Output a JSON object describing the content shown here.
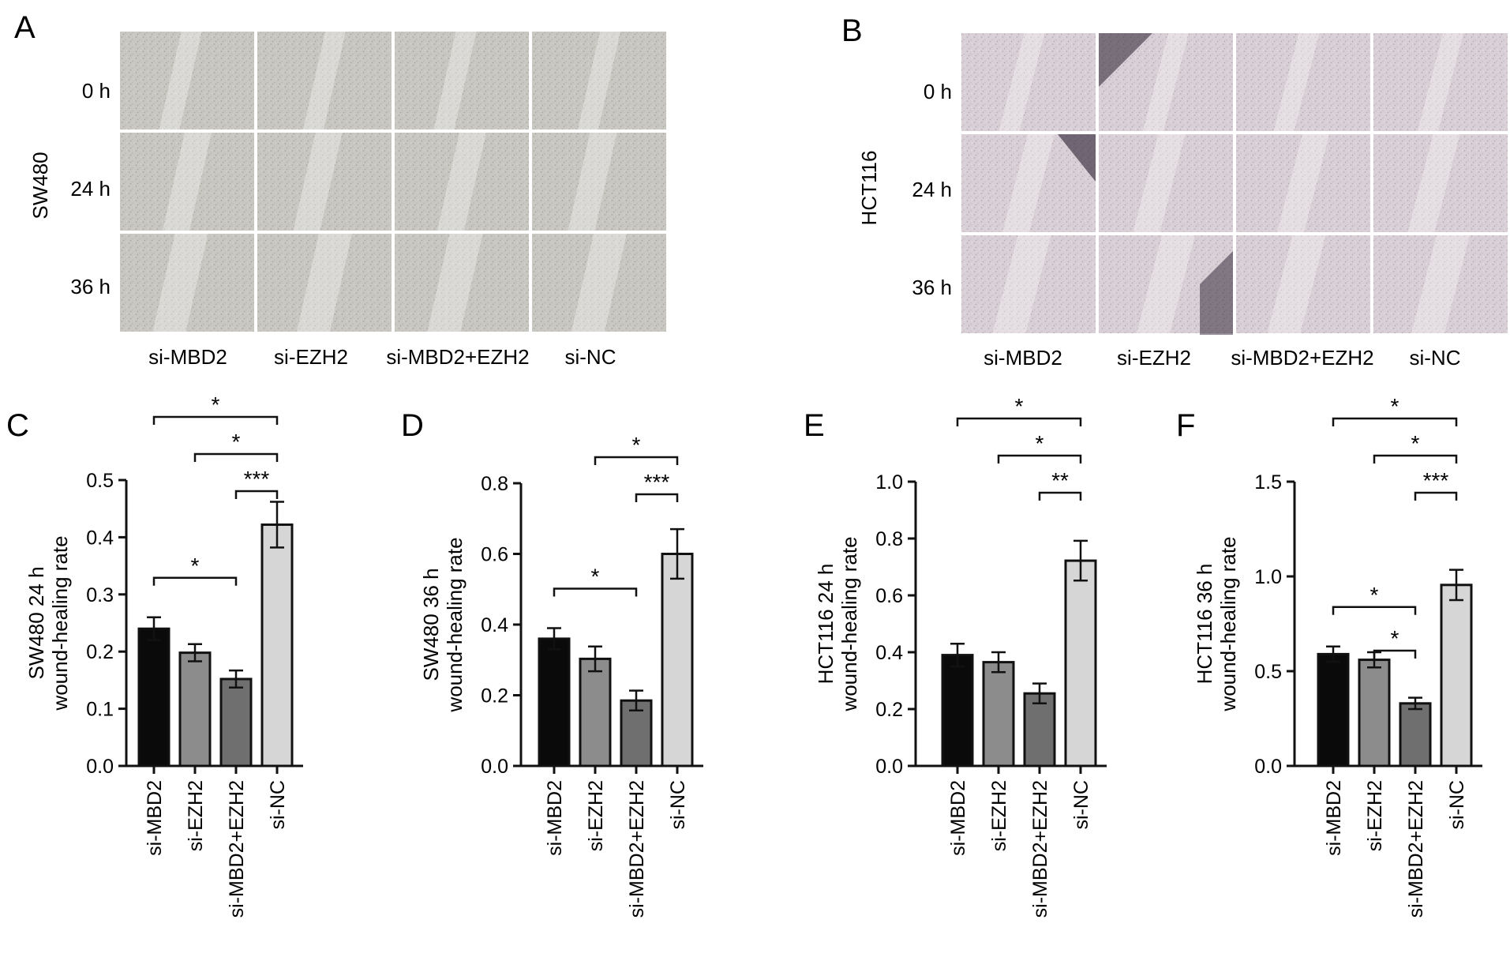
{
  "panels": {
    "A": {
      "letter": "A",
      "cell_line": "SW480",
      "rows": [
        "0 h",
        "24 h",
        "36 h"
      ],
      "columns": [
        "si-MBD2",
        "si-EZH2",
        "si-MBD2+EZH2",
        "si-NC"
      ],
      "tint": "#c9c7c1"
    },
    "B": {
      "letter": "B",
      "cell_line": "HCT116",
      "rows": [
        "0 h",
        "24 h",
        "36 h"
      ],
      "columns": [
        "si-MBD2",
        "si-EZH2",
        "si-MBD2+EZH2",
        "si-NC"
      ],
      "tint": "#d9cfd6"
    }
  },
  "bar_colors": [
    "#0a0a0a",
    "#8c8c8c",
    "#6f6f6f",
    "#d6d6d6"
  ],
  "chart_data": [
    {
      "letter": "C",
      "type": "bar",
      "ylabel": [
        "SW480 24 h",
        "wound-healing rate"
      ],
      "categories": [
        "si-MBD2",
        "si-EZH2",
        "si-MBD2+EZH2",
        "si-NC"
      ],
      "values": [
        0.24,
        0.198,
        0.152,
        0.422
      ],
      "errors": [
        0.02,
        0.015,
        0.015,
        0.04
      ],
      "ylim": [
        0,
        0.5
      ],
      "yticks": [
        "0.0",
        "0.1",
        "0.2",
        "0.3",
        "0.4",
        "0.5"
      ],
      "brackets_top": [
        {
          "from": 0,
          "to": 3,
          "label": "*"
        },
        {
          "from": 1,
          "to": 3,
          "label": "*"
        },
        {
          "from": 2,
          "to": 3,
          "label": "***"
        }
      ],
      "brackets_low": [
        {
          "from": 0,
          "to": 2,
          "label": "*"
        }
      ]
    },
    {
      "letter": "D",
      "type": "bar",
      "ylabel": [
        "SW480 36 h",
        "wound-healing rate"
      ],
      "categories": [
        "si-MBD2",
        "si-EZH2",
        "si-MBD2+EZH2",
        "si-NC"
      ],
      "values": [
        0.36,
        0.303,
        0.185,
        0.6
      ],
      "errors": [
        0.03,
        0.035,
        0.028,
        0.07
      ],
      "ylim": [
        0,
        0.8
      ],
      "yticks": [
        "0.0",
        "0.2",
        "0.4",
        "0.6",
        "0.8"
      ],
      "brackets_top": [
        {
          "from": 1,
          "to": 3,
          "label": "*"
        },
        {
          "from": 2,
          "to": 3,
          "label": "***"
        }
      ],
      "brackets_low": [
        {
          "from": 0,
          "to": 2,
          "label": "*"
        }
      ]
    },
    {
      "letter": "E",
      "type": "bar",
      "ylabel": [
        "HCT116 24 h",
        "wound-healing rate"
      ],
      "categories": [
        "si-MBD2",
        "si-EZH2",
        "si-MBD2+EZH2",
        "si-NC"
      ],
      "values": [
        0.39,
        0.365,
        0.255,
        0.722
      ],
      "errors": [
        0.04,
        0.035,
        0.035,
        0.07
      ],
      "ylim": [
        0,
        1.0
      ],
      "yticks": [
        "0.0",
        "0.2",
        "0.4",
        "0.6",
        "0.8",
        "1.0"
      ],
      "brackets_top": [
        {
          "from": 0,
          "to": 3,
          "label": "*"
        },
        {
          "from": 1,
          "to": 3,
          "label": "*"
        },
        {
          "from": 2,
          "to": 3,
          "label": "**"
        }
      ],
      "brackets_low": []
    },
    {
      "letter": "F",
      "type": "bar",
      "ylabel": [
        "HCT116 36 h",
        "wound-healing rate"
      ],
      "categories": [
        "si-MBD2",
        "si-EZH2",
        "si-MBD2+EZH2",
        "si-NC"
      ],
      "values": [
        0.59,
        0.56,
        0.33,
        0.955
      ],
      "errors": [
        0.04,
        0.04,
        0.03,
        0.08
      ],
      "ylim": [
        0,
        1.5
      ],
      "yticks": [
        "0.0",
        "0.5",
        "1.0",
        "1.5"
      ],
      "brackets_top": [
        {
          "from": 0,
          "to": 3,
          "label": "*"
        },
        {
          "from": 1,
          "to": 3,
          "label": "*"
        },
        {
          "from": 2,
          "to": 3,
          "label": "***"
        }
      ],
      "brackets_low": [
        {
          "from": 0,
          "to": 2,
          "label": "*"
        },
        {
          "from": 1,
          "to": 2,
          "label": "*"
        }
      ]
    }
  ]
}
